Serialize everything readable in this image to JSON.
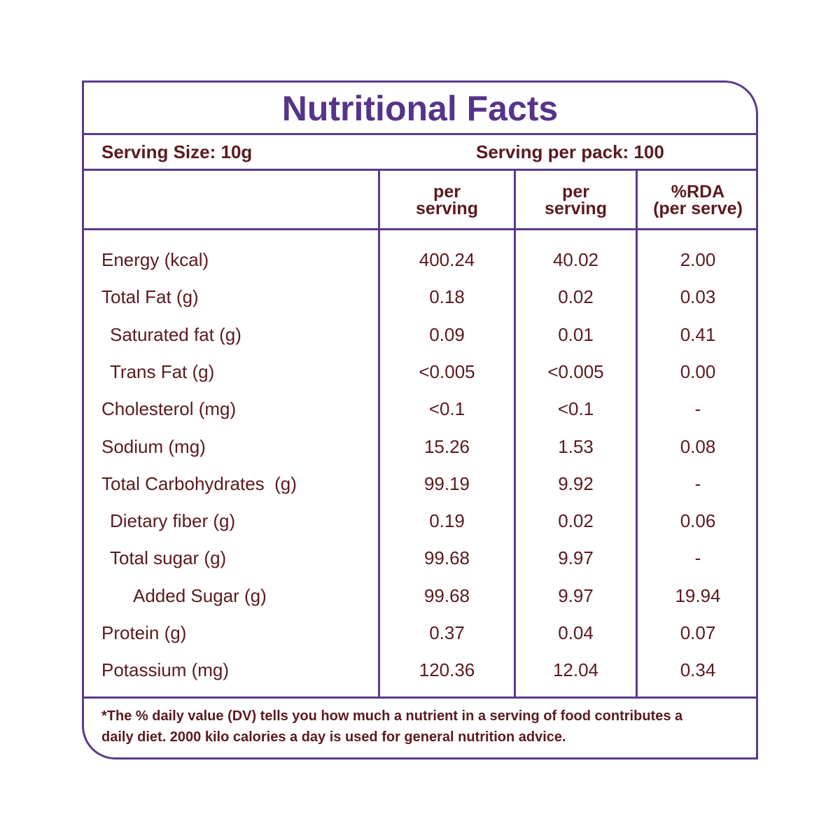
{
  "header": {
    "title": "Nutritional Facts"
  },
  "serving": {
    "size": "Serving Size: 10g",
    "per_pack": "Serving per pack: 100"
  },
  "table": {
    "columns": [
      [
        "per",
        "serving"
      ],
      [
        "per",
        "serving"
      ],
      [
        "%RDA",
        "(per serve)"
      ]
    ],
    "rows": [
      [
        "Energy (kcal)",
        "400.24",
        "40.02",
        "2.00"
      ],
      [
        "Total Fat (g)",
        "0.18",
        "0.02",
        "0.03"
      ],
      [
        "Saturated fat (g)",
        "0.09",
        "0.01",
        "0.41"
      ],
      [
        "Trans Fat (g)",
        "<0.005",
        "<0.005",
        "0.00"
      ],
      [
        "Cholesterol (mg)",
        "<0.1",
        "<0.1",
        "-"
      ],
      [
        "Sodium (mg)",
        "15.26",
        "1.53",
        "0.08"
      ],
      [
        "Total Carbohydrates  (g)",
        "99.19",
        "9.92",
        "-"
      ],
      [
        "Dietary fiber (g)",
        "0.19",
        "0.02",
        "0.06"
      ],
      [
        "Total sugar (g)",
        "99.68",
        "9.97",
        "-"
      ],
      [
        "Added Sugar (g)",
        "99.68",
        "9.97",
        "19.94"
      ],
      [
        "Protein (g)",
        "0.37",
        "0.04",
        "0.07"
      ],
      [
        "Potassium (mg)",
        "120.36",
        "12.04",
        "0.34"
      ]
    ]
  },
  "footnote": {
    "lines": [
      "*The % daily value (DV) tells you how much a nutrient in a serving of food contributes a",
      "daily diet. 2000 kilo calories a day is used for general nutrition advice."
    ]
  }
}
